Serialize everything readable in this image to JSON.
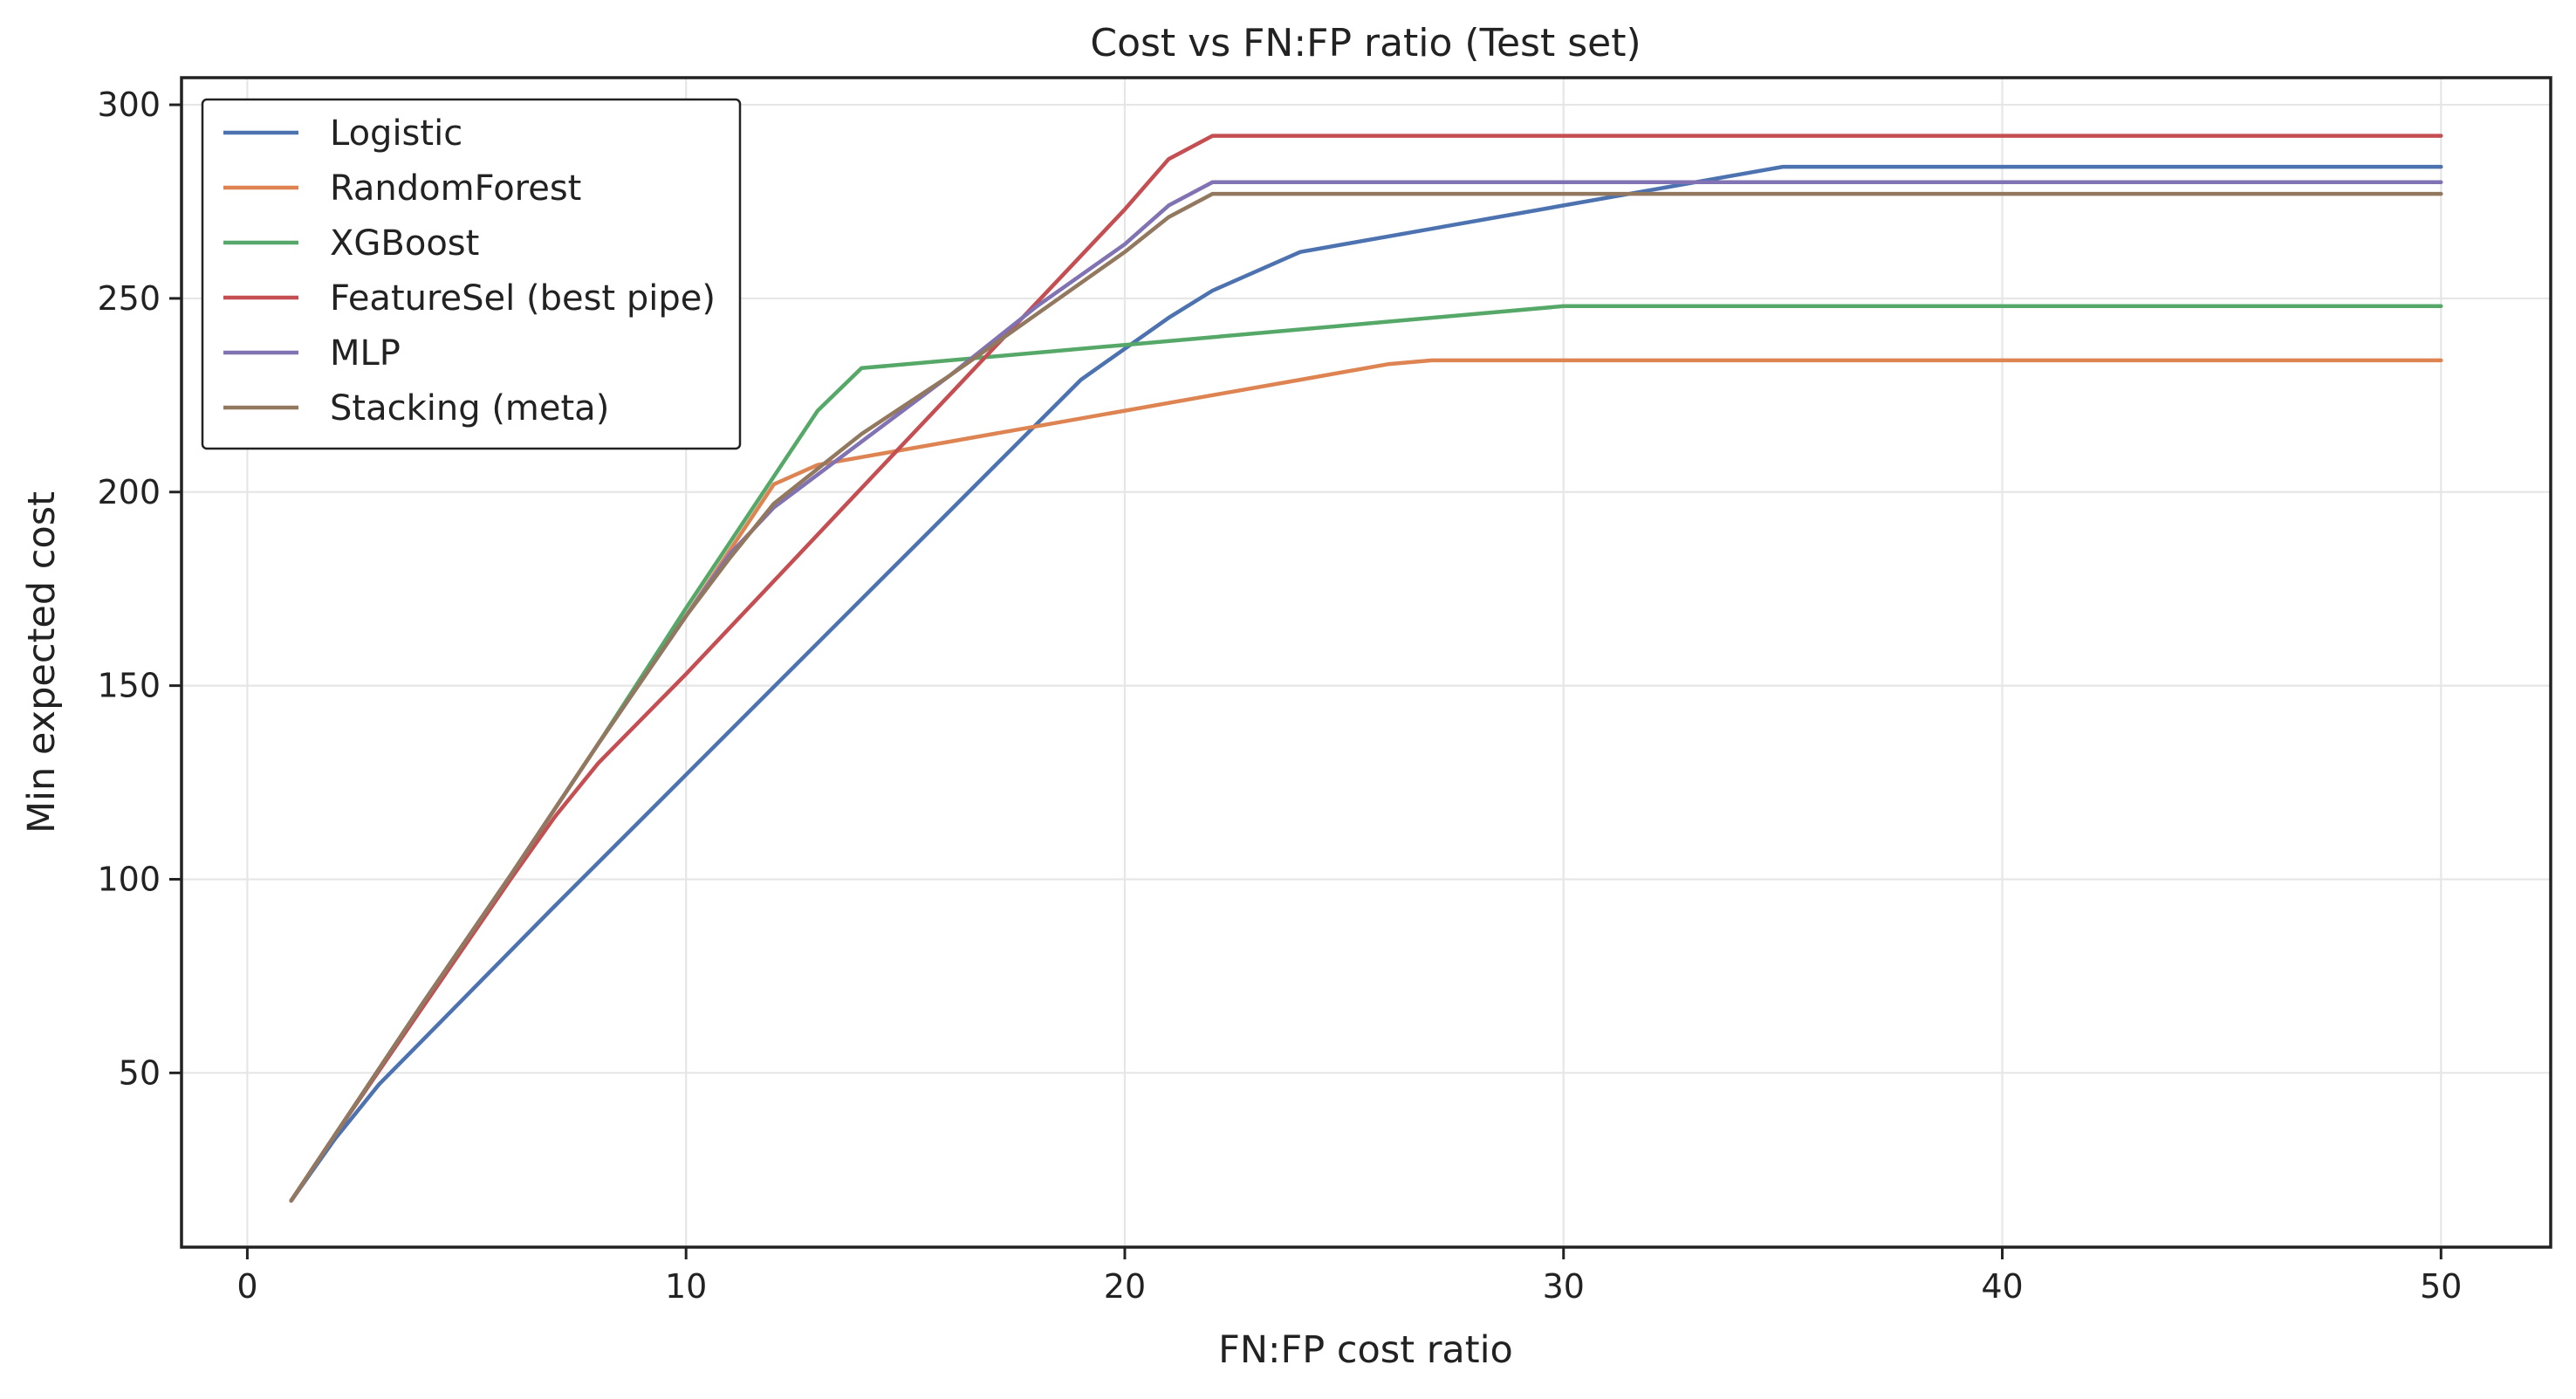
{
  "chart_data": {
    "type": "line",
    "title": "Cost vs FN:FP ratio (Test set)",
    "xlabel": "FN:FP cost ratio",
    "ylabel": "Min expected cost",
    "xlim": [
      -1.5,
      52.5
    ],
    "ylim": [
      5,
      307
    ],
    "xticks": [
      0,
      10,
      20,
      30,
      40,
      50
    ],
    "yticks": [
      50,
      100,
      150,
      200,
      250,
      300
    ],
    "grid": true,
    "legend_position": "upper-left",
    "series": [
      {
        "name": "Logistic",
        "color": "#4c72b0",
        "points": [
          [
            1,
            17
          ],
          [
            2,
            33
          ],
          [
            3,
            47
          ],
          [
            5,
            70
          ],
          [
            7,
            93
          ],
          [
            10,
            127
          ],
          [
            13,
            161
          ],
          [
            16,
            195
          ],
          [
            19,
            229
          ],
          [
            21,
            245
          ],
          [
            22,
            252
          ],
          [
            24,
            262
          ],
          [
            30,
            274
          ],
          [
            35,
            284
          ],
          [
            50,
            284
          ]
        ]
      },
      {
        "name": "RandomForest",
        "color": "#dd8452",
        "points": [
          [
            1,
            17
          ],
          [
            2,
            34
          ],
          [
            4,
            68
          ],
          [
            6,
            101
          ],
          [
            8,
            135
          ],
          [
            10,
            168
          ],
          [
            12,
            202
          ],
          [
            13,
            207
          ],
          [
            14,
            209
          ],
          [
            16,
            213
          ],
          [
            20,
            221
          ],
          [
            22,
            225
          ],
          [
            24,
            229
          ],
          [
            26,
            233
          ],
          [
            27,
            234
          ],
          [
            50,
            234
          ]
        ]
      },
      {
        "name": "XGBoost",
        "color": "#55a868",
        "points": [
          [
            1,
            17
          ],
          [
            2,
            34
          ],
          [
            4,
            68
          ],
          [
            6,
            101
          ],
          [
            8,
            135
          ],
          [
            10,
            170
          ],
          [
            12,
            204
          ],
          [
            13,
            221
          ],
          [
            14,
            232
          ],
          [
            20,
            238
          ],
          [
            25,
            243
          ],
          [
            30,
            248
          ],
          [
            50,
            248
          ]
        ]
      },
      {
        "name": "FeatureSel (best pipe)",
        "color": "#c44e52",
        "points": [
          [
            1,
            17
          ],
          [
            2,
            34
          ],
          [
            4,
            67
          ],
          [
            6,
            100
          ],
          [
            7,
            116
          ],
          [
            8,
            130
          ],
          [
            10,
            153
          ],
          [
            12,
            177
          ],
          [
            14,
            201
          ],
          [
            16,
            225
          ],
          [
            18,
            249
          ],
          [
            20,
            273
          ],
          [
            21,
            286
          ],
          [
            22,
            292
          ],
          [
            50,
            292
          ]
        ]
      },
      {
        "name": "MLP",
        "color": "#8172b3",
        "points": [
          [
            1,
            17
          ],
          [
            2,
            34
          ],
          [
            4,
            68
          ],
          [
            6,
            101
          ],
          [
            8,
            135
          ],
          [
            10,
            168
          ],
          [
            11,
            184
          ],
          [
            12,
            196
          ],
          [
            14,
            213
          ],
          [
            16,
            230
          ],
          [
            18,
            248
          ],
          [
            20,
            264
          ],
          [
            21,
            274
          ],
          [
            22,
            280
          ],
          [
            50,
            280
          ]
        ]
      },
      {
        "name": "Stacking (meta)",
        "color": "#937860",
        "points": [
          [
            1,
            17
          ],
          [
            2,
            34
          ],
          [
            4,
            68
          ],
          [
            6,
            101
          ],
          [
            8,
            135
          ],
          [
            10,
            168
          ],
          [
            11,
            183
          ],
          [
            12,
            197
          ],
          [
            14,
            215
          ],
          [
            16,
            230
          ],
          [
            18,
            246
          ],
          [
            20,
            262
          ],
          [
            21,
            271
          ],
          [
            22,
            277
          ],
          [
            50,
            277
          ]
        ]
      }
    ]
  }
}
